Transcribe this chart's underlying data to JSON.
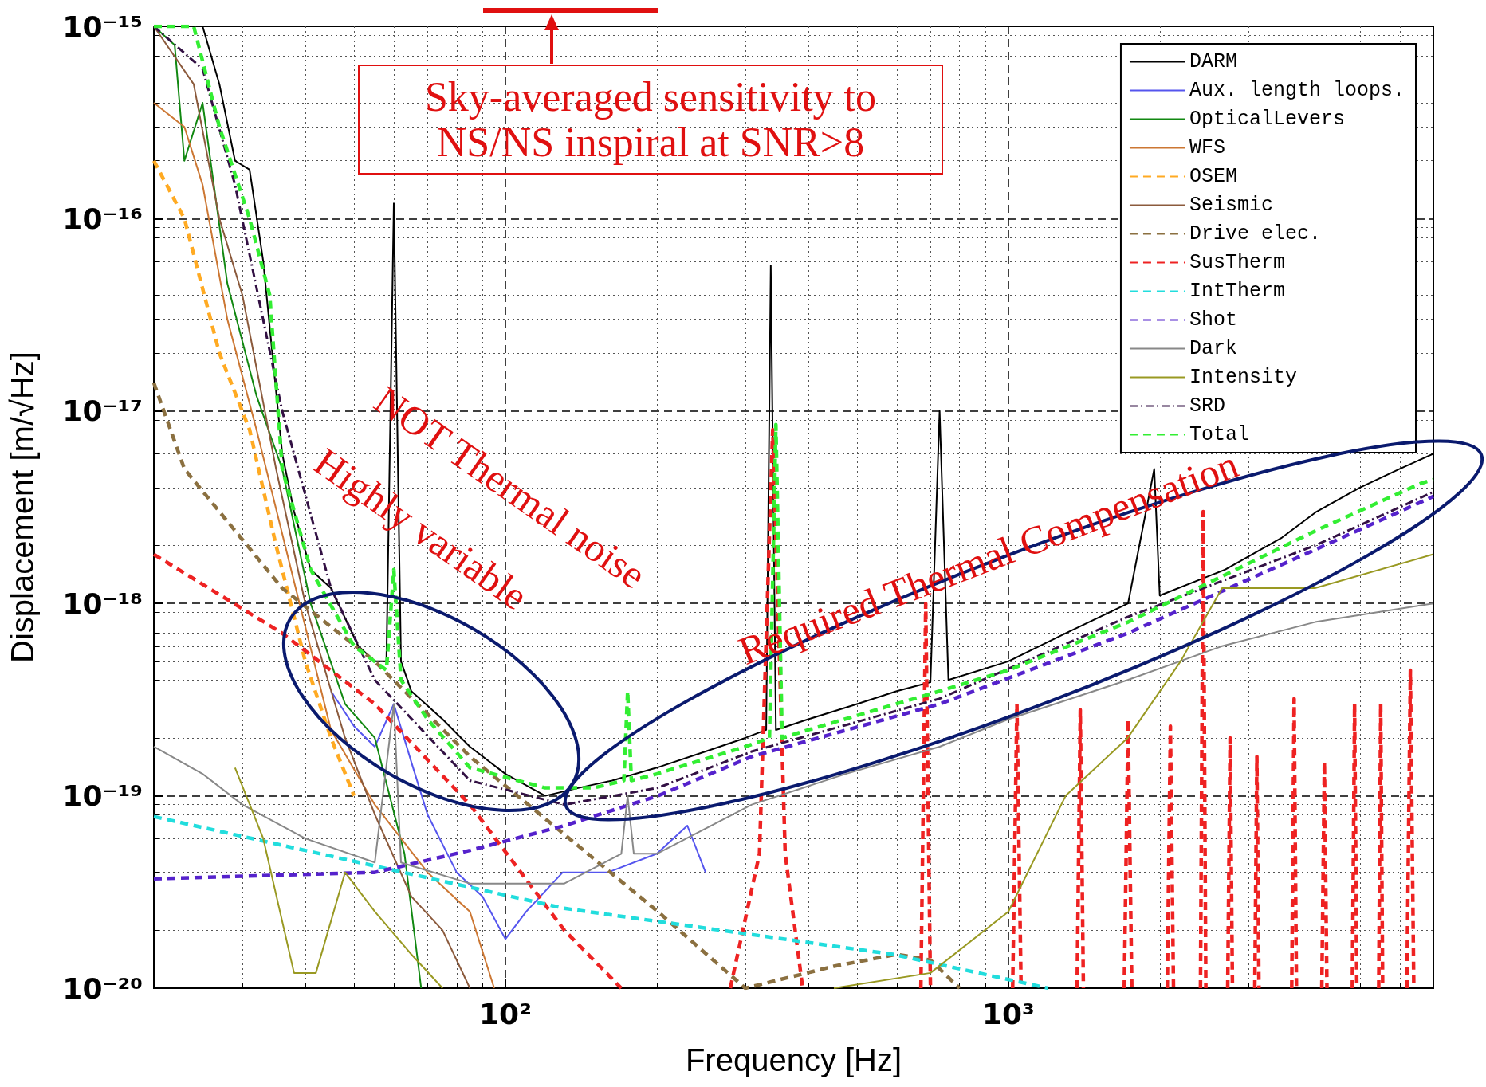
{
  "chart_data": {
    "type": "line",
    "xlabel": "Frequency [Hz]",
    "ylabel": "Displacement [m/√Hz]",
    "xlim": [
      20,
      7000
    ],
    "ylim": [
      1e-20,
      1e-15
    ],
    "log": "xy",
    "grid": true,
    "legend": "top right",
    "marker": "none",
    "xticks": [
      {
        "value": 100,
        "label": "10²"
      },
      {
        "value": 1000,
        "label": "10³"
      }
    ],
    "yticks": [
      {
        "value": 1e-20,
        "label": "10⁻²⁰"
      },
      {
        "value": 1e-19,
        "label": "10⁻¹⁹"
      },
      {
        "value": 1e-18,
        "label": "10⁻¹⁸"
      },
      {
        "value": 1e-17,
        "label": "10⁻¹⁷"
      },
      {
        "value": 1e-16,
        "label": "10⁻¹⁶"
      },
      {
        "value": 1e-15,
        "label": "10⁻¹⁵"
      }
    ],
    "annotations": [
      "Sky-averaged sensitivity to NS/NS inspiral at SNR>8",
      "NOT Thermal noise",
      "Highly variable",
      "Required Thermal Compensation"
    ],
    "series": [
      {
        "name": "DARM",
        "color": "#000000",
        "line_style": "solid",
        "x": [
          25,
          27,
          29,
          31,
          33,
          36,
          38,
          41,
          45,
          51,
          55,
          58,
          60,
          62,
          65,
          75,
          85,
          100,
          120,
          140,
          163,
          200,
          250,
          300,
          330,
          337,
          345,
          400,
          500,
          600,
          700,
          730,
          760,
          1000,
          1300,
          1730,
          1950,
          2000,
          2700,
          3500,
          4100,
          5000,
          6000,
          7000
        ],
        "values": [
          1e-15,
          5e-16,
          2e-16,
          1.8e-16,
          6e-17,
          6e-18,
          3e-18,
          1.5e-18,
          1.2e-18,
          6e-19,
          5e-19,
          5e-19,
          1.2e-16,
          5e-19,
          3.5e-19,
          2.5e-19,
          1.8e-19,
          1.3e-19,
          1e-19,
          1.1e-19,
          1.2e-19,
          1.4e-19,
          1.7e-19,
          2e-19,
          2.2e-19,
          5.7e-17,
          2.2e-19,
          2.5e-19,
          3e-19,
          3.5e-19,
          3.9e-19,
          1e-17,
          4e-19,
          5e-19,
          7e-19,
          1e-18,
          5e-18,
          1.1e-18,
          1.5e-18,
          2.2e-18,
          3e-18,
          4e-18,
          5e-18,
          6e-18
        ]
      },
      {
        "name": "Aux. length loops.",
        "color": "#5555ee",
        "line_style": "solid",
        "x": [
          45,
          50,
          55,
          60,
          65,
          70,
          80,
          90,
          100,
          110,
          130,
          160,
          200,
          230,
          250
        ],
        "values": [
          3.5e-19,
          2.3e-19,
          1.8e-19,
          3e-19,
          1.5e-19,
          8e-20,
          4e-20,
          3e-20,
          1.8e-20,
          2.5e-20,
          4e-20,
          4e-20,
          5e-20,
          7e-20,
          4e-20
        ]
      },
      {
        "name": "OpticalLevers",
        "color": "#118811",
        "line_style": "solid",
        "x": [
          20,
          22,
          23,
          25,
          28,
          32,
          36,
          41,
          48,
          55,
          63,
          68
        ],
        "values": [
          1e-15,
          8e-16,
          2e-16,
          4e-16,
          4.6e-17,
          1.2e-17,
          5e-18,
          1e-18,
          3e-19,
          2e-19,
          5e-20,
          1e-20
        ]
      },
      {
        "name": "WFS",
        "color": "#cc7733",
        "line_style": "solid",
        "x": [
          20,
          23,
          25,
          28,
          32,
          38,
          45,
          55,
          70,
          85,
          95
        ],
        "values": [
          4e-16,
          3e-16,
          1.5e-16,
          3e-17,
          8e-18,
          1.3e-18,
          2.2e-19,
          9e-20,
          4e-20,
          2.5e-20,
          1e-20
        ]
      },
      {
        "name": "OSEM",
        "color": "#ffaa22",
        "line_style": "dashed",
        "x": [
          20,
          23,
          27,
          31,
          35,
          40,
          45,
          50
        ],
        "values": [
          2e-16,
          1e-16,
          2e-17,
          8e-18,
          2e-18,
          5e-19,
          2e-19,
          1e-19
        ]
      },
      {
        "name": "Seismic",
        "color": "#8b5a3c",
        "line_style": "solid",
        "x": [
          20,
          24,
          27,
          30,
          35,
          40,
          48,
          55,
          65,
          75,
          85
        ],
        "values": [
          1e-15,
          5e-16,
          1e-16,
          4e-17,
          5e-18,
          1e-18,
          2e-19,
          8e-20,
          3e-20,
          2e-20,
          1e-20
        ]
      },
      {
        "name": "Drive elec.",
        "color": "#8b7040",
        "line_style": "dashed",
        "x": [
          20,
          23,
          36,
          55,
          85,
          131,
          201,
          300,
          450,
          600,
          700,
          800
        ],
        "values": [
          1.4e-17,
          5e-18,
          1.2e-18,
          5e-19,
          1.6e-19,
          6.3e-20,
          2.5e-20,
          1e-20,
          1.3e-20,
          1.5e-20,
          1.4e-20,
          1e-20
        ]
      },
      {
        "name": "SusTherm",
        "color": "#ee2222",
        "line_style": "dashed",
        "x": [
          20,
          36,
          55,
          85,
          131,
          170,
          200,
          280,
          320,
          340,
          360,
          390,
          500,
          670,
          685,
          700,
          800,
          1020,
          1040,
          1060,
          1200,
          1370,
          1390,
          1410,
          1500,
          1700,
          1730,
          1760,
          1900,
          2070,
          2100,
          2130,
          2300,
          2410,
          2440,
          2470,
          2600,
          2730,
          2760,
          2790,
          2950,
          3090,
          3120,
          3150,
          3400,
          3660,
          3700,
          3740,
          4000,
          4200,
          4250,
          4300,
          4600,
          4830,
          4880,
          4930,
          5200,
          5450,
          5500,
          5550,
          5900,
          6200,
          6300,
          6400
        ],
        "values": [
          1.8e-18,
          7e-19,
          3e-19,
          9e-20,
          2e-20,
          1e-20,
          null,
          1e-20,
          5e-20,
          8e-18,
          5e-20,
          1e-20,
          null,
          1e-20,
          1e-18,
          1e-20,
          null,
          1e-20,
          3e-19,
          1e-20,
          null,
          1e-20,
          2.8e-19,
          1e-20,
          null,
          1e-20,
          2.5e-19,
          1e-20,
          null,
          1e-20,
          2.3e-19,
          1e-20,
          null,
          1e-20,
          3e-18,
          1e-20,
          null,
          1e-20,
          2e-19,
          1e-20,
          null,
          1e-20,
          1.6e-19,
          1e-20,
          null,
          1e-20,
          3.2e-19,
          1e-20,
          null,
          1e-20,
          1.5e-19,
          1e-20,
          null,
          1e-20,
          3e-19,
          1e-20,
          null,
          1e-20,
          3e-19,
          1e-20,
          null,
          1e-20,
          4.5e-19,
          1e-20
        ]
      },
      {
        "name": "IntTherm",
        "color": "#22dddd",
        "line_style": "dashed",
        "x": [
          20,
          131,
          589,
          1200
        ],
        "values": [
          7.8e-20,
          2.6e-20,
          1.5e-20,
          1e-20
        ]
      },
      {
        "name": "Shot",
        "color": "#5522cc",
        "line_style": "dashed",
        "x": [
          20,
          55,
          85,
          131,
          201,
          309,
          730,
          1727,
          4070,
          7000
        ],
        "values": [
          3.7e-20,
          4e-20,
          5.2e-20,
          7e-20,
          1e-19,
          1.6e-19,
          3e-19,
          7e-19,
          1.9e-18,
          3.6e-18
        ]
      },
      {
        "name": "Dark",
        "color": "#888888",
        "line_style": "solid",
        "x": [
          20,
          25,
          30,
          40,
          55,
          60,
          62,
          85,
          131,
          170,
          175,
          180,
          200,
          309,
          475,
          730,
          1000,
          1727,
          2660,
          4070,
          7000
        ],
        "values": [
          1.8e-19,
          1.3e-19,
          9e-20,
          6e-20,
          4.5e-20,
          3e-19,
          4.5e-20,
          3.5e-20,
          3.5e-20,
          5e-20,
          1e-19,
          5e-20,
          5e-20,
          9e-20,
          1.3e-19,
          1.8e-19,
          2.5e-19,
          4e-19,
          6e-19,
          8e-19,
          1e-18
        ]
      },
      {
        "name": "Intensity",
        "color": "#999922",
        "line_style": "solid",
        "x": [
          29,
          33,
          38,
          42,
          48,
          55,
          65,
          75,
          200,
          450,
          700,
          1000,
          1300,
          1727,
          2200,
          2660,
          4070,
          7000
        ],
        "values": [
          1.4e-19,
          6e-20,
          1.2e-20,
          1.2e-20,
          4e-20,
          2.5e-20,
          1.5e-20,
          1e-20,
          null,
          1e-20,
          1.2e-20,
          2.5e-20,
          1e-19,
          2e-19,
          5e-19,
          1.2e-18,
          1.2e-18,
          1.8e-18
        ]
      },
      {
        "name": "SRD",
        "color": "#331144",
        "line_style": "dashdot",
        "x": [
          20,
          25,
          29,
          36,
          45,
          55,
          85,
          131,
          201,
          309,
          730,
          1727,
          4070,
          7000
        ],
        "values": [
          1e-15,
          6e-16,
          1.5e-16,
          1e-17,
          1.2e-18,
          4e-19,
          1.2e-19,
          9e-20,
          1.1e-19,
          1.7e-19,
          3.2e-19,
          8.5e-19,
          2e-18,
          3.8e-18
        ]
      },
      {
        "name": "Total",
        "color": "#33ee33",
        "line_style": "dashed",
        "x": [
          20,
          24,
          27,
          31,
          34,
          36,
          41,
          50,
          58,
          60,
          62,
          70,
          85,
          120,
          150,
          172,
          175,
          178,
          200,
          300,
          335,
          345,
          355,
          400,
          730,
          1000,
          1730,
          4100,
          6600,
          7000
        ],
        "values": [
          1e-15,
          1e-15,
          3e-16,
          1e-16,
          4e-17,
          5e-18,
          1.5e-18,
          6e-19,
          4.5e-19,
          1.5e-18,
          4e-19,
          2.5e-19,
          1.4e-19,
          1.1e-19,
          1.1e-19,
          1.2e-19,
          3.5e-19,
          1.2e-19,
          1.3e-19,
          1.8e-19,
          2e-19,
          8.5e-18,
          2e-19,
          2.2e-19,
          3.5e-19,
          4.5e-19,
          8e-19,
          2.4e-18,
          4.2e-18,
          4.4e-18
        ]
      }
    ]
  }
}
